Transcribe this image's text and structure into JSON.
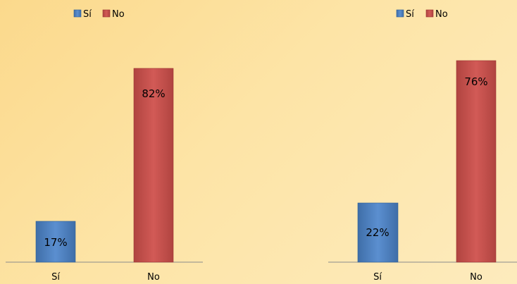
{
  "colors": {
    "si": "#4f81bd",
    "si_dark": "#2f5f96",
    "no": "#c0504d",
    "no_dark": "#9b3532",
    "axis": "#8c8c8c"
  },
  "legend": {
    "si_label": "Sí",
    "no_label": "No"
  },
  "chart_data": [
    {
      "type": "bar",
      "categories": [
        "Sí",
        "No"
      ],
      "values": [
        17,
        82
      ],
      "data_labels": [
        "17%",
        "82%"
      ],
      "series_colors": [
        "#4f81bd",
        "#c0504d"
      ],
      "legend": [
        "Sí",
        "No"
      ],
      "legend_position": "top",
      "ylim": [
        0,
        100
      ],
      "grid": false,
      "title": "",
      "xlabel": "",
      "ylabel": ""
    },
    {
      "type": "bar",
      "categories": [
        "Sí",
        "No"
      ],
      "values": [
        22,
        76
      ],
      "data_labels": [
        "22%",
        "76%"
      ],
      "series_colors": [
        "#4f81bd",
        "#c0504d"
      ],
      "legend": [
        "Sí",
        "No"
      ],
      "legend_position": "top",
      "ylim": [
        0,
        100
      ],
      "grid": false,
      "title": "",
      "xlabel": "",
      "ylabel": ""
    }
  ]
}
